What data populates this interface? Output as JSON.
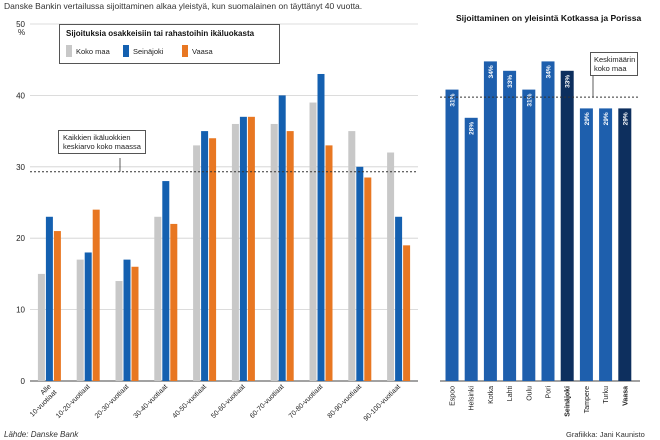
{
  "header": {
    "intro": "Danske Bankin vertailussa sijoittaminen alkaa yleistyä, kun suomalainen on täyttänyt 40 vuotta."
  },
  "footer": {
    "source": "Lähde: Danske Bank",
    "credit": "Grafiikka: Jani Kaunisto"
  },
  "colors": {
    "koko_maa": "#c8c8c8",
    "seinajoki": "#1460b0",
    "vaasa": "#e87722",
    "right_bar": "#1e5fad",
    "right_bar_dark": "#0d2f5e"
  },
  "chart_data": [
    {
      "type": "bar",
      "title": "Sijoituksia osakkeisiin tai rahastoihin ikäluokasta",
      "ylabel": "%",
      "ylim": [
        0,
        50
      ],
      "yticks": [
        "0",
        "10",
        "20",
        "30",
        "40",
        "50"
      ],
      "grid": true,
      "legend": "top-left",
      "categories": [
        "Alle 10-vuotiaat",
        "10-20-vuotiaat",
        "20-30-vuotiaat",
        "30-40-vuotiaat",
        "40-50-vuotiaat",
        "50-60-vuotiaat",
        "60-70-vuotiaat",
        "70-80-vuotiaat",
        "80-90-vuotiaat",
        "90-100-vuotiaat"
      ],
      "series": [
        {
          "name": "Koko maa",
          "color": "#c8c8c8",
          "values": [
            15,
            17,
            14,
            23,
            33,
            36,
            36,
            39,
            35,
            32
          ]
        },
        {
          "name": "Seinäjoki",
          "color": "#1460b0",
          "values": [
            23,
            18,
            17,
            28,
            35,
            37,
            40,
            43,
            30,
            23
          ]
        },
        {
          "name": "Vaasa",
          "color": "#e87722",
          "values": [
            21,
            24,
            16,
            22,
            34,
            37,
            35,
            33,
            28.5,
            19
          ]
        }
      ],
      "reference_line": {
        "value": 29.3,
        "label_line1": "Kaikkien ikäluokkien",
        "label_line2": "keskiarvo koko maassa"
      }
    },
    {
      "type": "bar",
      "title": "Sijoittaminen on yleisintä Kotkassa ja Porissa",
      "categories": [
        "Espoo",
        "Helsinki",
        "Kotka",
        "Lahti",
        "Oulu",
        "Pori",
        "Seinäjoki",
        "Tampere",
        "Turku",
        "Vaasa"
      ],
      "values": [
        31,
        28,
        34,
        33,
        31,
        34,
        33,
        29,
        29,
        29
      ],
      "labels": [
        "31%",
        "28%",
        "34%",
        "33%",
        "31%",
        "34%",
        "33%",
        "29%",
        "29%",
        "29%"
      ],
      "highlighted": [
        "Seinäjoki",
        "Vaasa"
      ],
      "reference_line": {
        "value": 30.2,
        "label_line1": "Keskimäärin",
        "label_line2": "koko maa"
      }
    }
  ]
}
